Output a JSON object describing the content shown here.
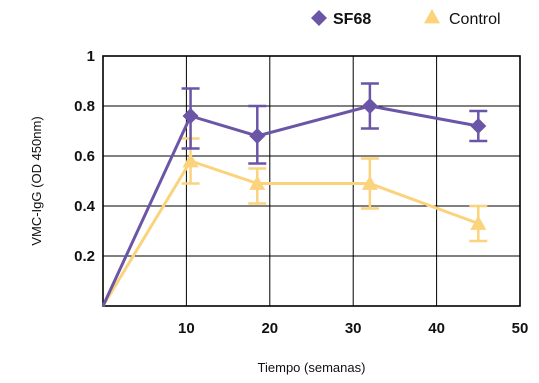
{
  "chart_data": {
    "type": "line",
    "xlabel": "Tiempo (semanas)",
    "ylabel": "VMC-IgG (OD 450nm)",
    "xlim": [
      0,
      50
    ],
    "ylim": [
      0,
      1
    ],
    "xticks": [
      10,
      20,
      30,
      40,
      50
    ],
    "yticks": [
      0.2,
      0.4,
      0.6,
      0.8,
      1
    ],
    "ytick_labels": [
      "0.2",
      "0.4",
      "0.6",
      "0.8",
      "1"
    ],
    "grid": true,
    "legend_position": "top-right",
    "series": [
      {
        "name": "SF68",
        "color": "#6b55a6",
        "marker": "diamond",
        "x": [
          0,
          10.5,
          18.5,
          32,
          45
        ],
        "y": [
          0.0,
          0.76,
          0.68,
          0.8,
          0.72
        ],
        "err_high": [
          null,
          0.87,
          0.8,
          0.89,
          0.78
        ],
        "err_low": [
          null,
          0.63,
          0.57,
          0.71,
          0.66
        ]
      },
      {
        "name": "Control",
        "color": "#fbd37c",
        "marker": "triangle",
        "x": [
          0,
          10.5,
          18.5,
          32,
          45
        ],
        "y": [
          0.0,
          0.58,
          0.49,
          0.49,
          0.33
        ],
        "err_high": [
          null,
          0.67,
          0.55,
          0.59,
          0.4
        ],
        "err_low": [
          null,
          0.49,
          0.41,
          0.39,
          0.26
        ]
      }
    ]
  }
}
